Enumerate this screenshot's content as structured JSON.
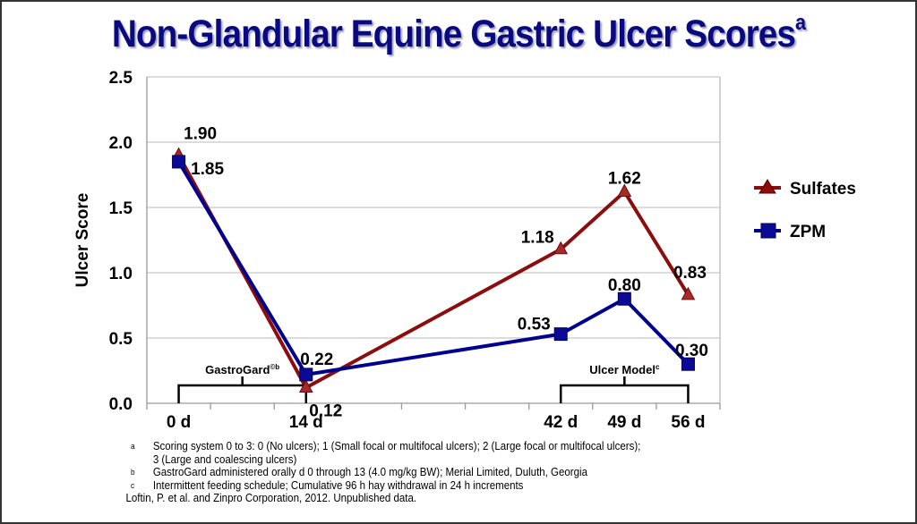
{
  "title": "Non-Glandular Equine Gastric Ulcer Scores",
  "title_superscript": "a",
  "chart_data": {
    "type": "line",
    "title": "Non-Glandular Equine Gastric Ulcer Scores",
    "xlabel": "",
    "ylabel": "Ulcer Score",
    "x": [
      0,
      14,
      42,
      49,
      56
    ],
    "x_tick_labels": [
      "0 d",
      "14 d",
      "42 d",
      "49 d",
      "56 d"
    ],
    "y_ticks": [
      "0.0",
      "0.5",
      "1.0",
      "1.5",
      "2.0",
      "2.5"
    ],
    "ylim": [
      0,
      2.5
    ],
    "grid": "horizontal",
    "legend_position": "right",
    "series": [
      {
        "name": "Sulfates",
        "values": [
          1.9,
          0.12,
          1.18,
          1.62,
          0.83
        ],
        "labels": [
          "1.90",
          "0.12",
          "1.18",
          "1.62",
          "0.83"
        ],
        "color": "#8b0d0d",
        "marker": "triangle"
      },
      {
        "name": "ZPM",
        "values": [
          1.85,
          0.22,
          0.53,
          0.8,
          0.3
        ],
        "labels": [
          "1.85",
          "0.22",
          "0.53",
          "0.80",
          "0.30"
        ],
        "color": "#00008f",
        "marker": "square"
      }
    ],
    "annotations": [
      {
        "text": "GastroGard",
        "superscript": "©b",
        "x_range": [
          0,
          14
        ]
      },
      {
        "text": "Ulcer Model",
        "superscript": "c",
        "x_range": [
          42,
          56
        ]
      }
    ]
  },
  "footnotes": [
    {
      "mark": "a",
      "lines": [
        "Scoring system 0 to 3: 0 (No ulcers); 1 (Small focal or multifocal ulcers); 2 (Large focal or multifocal ulcers);",
        "3 (Large and coalescing ulcers)"
      ]
    },
    {
      "mark": "b",
      "lines": [
        "GastroGard administered orally d 0 through 13 (4.0 mg/kg BW); Merial Limited, Duluth, Georgia"
      ]
    },
    {
      "mark": "c",
      "lines": [
        "Intermittent feeding schedule; Cumulative 96 h hay withdrawal in 24 h increments"
      ]
    }
  ],
  "citation": "Loftin, P. et al. and Zinpro Corporation, 2012. Unpublished data."
}
